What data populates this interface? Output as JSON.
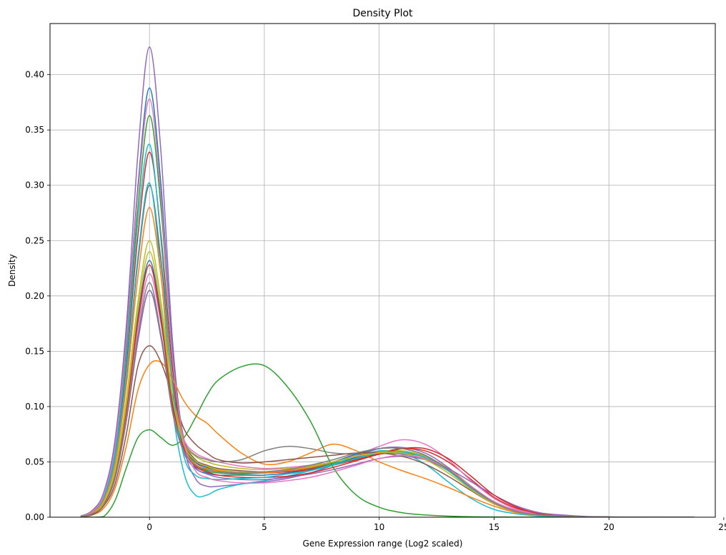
{
  "chart_data": {
    "type": "line",
    "title": "Density Plot",
    "xlabel": "Gene Expression range (Log2 scaled)",
    "ylabel": "Density",
    "xlim": [
      -4.33,
      24.63
    ],
    "ylim": [
      0,
      0.4462
    ],
    "xticks": [
      0,
      5,
      10,
      15,
      20,
      25
    ],
    "xtick_labels": [
      "0",
      "5",
      "10",
      "15",
      "20",
      "25"
    ],
    "yticks": [
      0,
      0.05,
      0.1,
      0.15,
      0.2,
      0.25,
      0.3,
      0.35,
      0.4
    ],
    "ytick_labels": [
      "0.00",
      "0.05",
      "0.10",
      "0.15",
      "0.20",
      "0.25",
      "0.30",
      "0.35",
      "0.40"
    ],
    "grid": true,
    "legend": "none",
    "palette": [
      "#1f77b4",
      "#ff7f0e",
      "#2ca02c",
      "#d62728",
      "#9467bd",
      "#8c564b",
      "#e377c2",
      "#7f7f7f",
      "#bcbd22",
      "#17becf"
    ],
    "x": [
      -3,
      -2.5,
      -2,
      -1.5,
      -1,
      -0.5,
      0,
      0.5,
      1,
      1.5,
      2,
      2.5,
      3,
      4,
      5,
      6,
      7,
      8,
      9,
      10,
      11,
      12,
      13,
      14,
      15,
      16,
      17,
      18,
      19,
      20,
      21,
      22,
      23,
      23.7
    ],
    "series": [
      {
        "color": "#9467bd",
        "values": [
          0.001,
          0.006,
          0.022,
          0.07,
          0.175,
          0.33,
          0.425,
          0.33,
          0.16,
          0.065,
          0.035,
          0.028,
          0.028,
          0.03,
          0.032,
          0.035,
          0.04,
          0.047,
          0.055,
          0.062,
          0.063,
          0.058,
          0.045,
          0.028,
          0.014,
          0.006,
          0.003,
          0.001,
          0.0005,
          0.0002,
          0.0001,
          0.0001,
          0.0001,
          0
        ]
      },
      {
        "color": "#1f77b4",
        "values": [
          0.001,
          0.005,
          0.02,
          0.065,
          0.165,
          0.3,
          0.388,
          0.3,
          0.15,
          0.07,
          0.045,
          0.04,
          0.038,
          0.038,
          0.038,
          0.04,
          0.043,
          0.048,
          0.054,
          0.059,
          0.06,
          0.055,
          0.043,
          0.027,
          0.013,
          0.005,
          0.002,
          0.001,
          0.0004,
          0.0002,
          0.0001,
          0,
          0,
          0
        ]
      },
      {
        "color": "#2ca02c",
        "values": [
          0.001,
          0.005,
          0.019,
          0.061,
          0.155,
          0.28,
          0.363,
          0.28,
          0.145,
          0.07,
          0.048,
          0.042,
          0.04,
          0.039,
          0.04,
          0.042,
          0.045,
          0.049,
          0.053,
          0.057,
          0.058,
          0.054,
          0.043,
          0.027,
          0.013,
          0.005,
          0.002,
          0.001,
          0.0004,
          0.0002,
          0.0001,
          0,
          0,
          0
        ]
      },
      {
        "color": "#d62728",
        "values": [
          0.001,
          0.004,
          0.017,
          0.055,
          0.14,
          0.255,
          0.33,
          0.255,
          0.135,
          0.07,
          0.05,
          0.045,
          0.042,
          0.04,
          0.04,
          0.041,
          0.043,
          0.047,
          0.052,
          0.058,
          0.062,
          0.06,
          0.05,
          0.034,
          0.018,
          0.008,
          0.003,
          0.001,
          0.0005,
          0.0002,
          0.0001,
          0,
          0,
          0
        ]
      },
      {
        "color": "#8c564b",
        "values": [
          0.001,
          0.004,
          0.016,
          0.051,
          0.128,
          0.232,
          0.3,
          0.232,
          0.125,
          0.07,
          0.052,
          0.047,
          0.044,
          0.042,
          0.041,
          0.042,
          0.044,
          0.048,
          0.053,
          0.057,
          0.059,
          0.055,
          0.044,
          0.028,
          0.014,
          0.006,
          0.002,
          0.001,
          0.0004,
          0.0002,
          0.0001,
          0,
          0,
          0
        ]
      },
      {
        "color": "#17becf",
        "values": [
          0.001,
          0.004,
          0.016,
          0.052,
          0.13,
          0.236,
          0.302,
          0.22,
          0.1,
          0.04,
          0.02,
          0.02,
          0.025,
          0.03,
          0.033,
          0.037,
          0.042,
          0.048,
          0.055,
          0.06,
          0.058,
          0.048,
          0.032,
          0.017,
          0.007,
          0.003,
          0.001,
          0.0004,
          0.0002,
          0.0001,
          0,
          0,
          0,
          0
        ]
      },
      {
        "color": "#bcbd22",
        "values": [
          0.001,
          0.003,
          0.013,
          0.043,
          0.108,
          0.195,
          0.25,
          0.195,
          0.11,
          0.068,
          0.055,
          0.05,
          0.047,
          0.044,
          0.043,
          0.044,
          0.046,
          0.05,
          0.055,
          0.059,
          0.06,
          0.055,
          0.044,
          0.028,
          0.014,
          0.006,
          0.002,
          0.001,
          0.0004,
          0.0002,
          0.0001,
          0,
          0,
          0
        ]
      },
      {
        "color": "#e377c2",
        "values": [
          0.001,
          0.003,
          0.012,
          0.038,
          0.095,
          0.172,
          0.22,
          0.175,
          0.105,
          0.07,
          0.058,
          0.053,
          0.05,
          0.046,
          0.044,
          0.045,
          0.047,
          0.05,
          0.056,
          0.064,
          0.07,
          0.066,
          0.052,
          0.033,
          0.017,
          0.007,
          0.003,
          0.001,
          0.0004,
          0.0002,
          0.0001,
          0,
          0,
          0
        ]
      },
      {
        "color": "#7f7f7f",
        "values": [
          0.001,
          0.003,
          0.011,
          0.035,
          0.088,
          0.16,
          0.205,
          0.165,
          0.1,
          0.068,
          0.056,
          0.052,
          0.05,
          0.052,
          0.06,
          0.064,
          0.062,
          0.058,
          0.057,
          0.058,
          0.057,
          0.052,
          0.042,
          0.027,
          0.014,
          0.006,
          0.002,
          0.001,
          0.0004,
          0.0002,
          0.0001,
          0,
          0,
          0
        ]
      },
      {
        "color": "#ff7f0e",
        "values": [
          0.0005,
          0.002,
          0.008,
          0.026,
          0.065,
          0.115,
          0.138,
          0.14,
          0.125,
          0.105,
          0.092,
          0.085,
          0.075,
          0.058,
          0.048,
          0.05,
          0.058,
          0.066,
          0.06,
          0.05,
          0.042,
          0.035,
          0.027,
          0.018,
          0.01,
          0.004,
          0.002,
          0.001,
          0.0004,
          0.0002,
          0.0001,
          0,
          0,
          0
        ]
      },
      {
        "color": "#2ca02c",
        "values": [
          0,
          0,
          0.0005,
          0.015,
          0.045,
          0.072,
          0.079,
          0.072,
          0.065,
          0.072,
          0.09,
          0.11,
          0.124,
          0.136,
          0.137,
          0.118,
          0.087,
          0.045,
          0.02,
          0.009,
          0.004,
          0.002,
          0.001,
          0.0004,
          0.0002,
          0.0001,
          0,
          0,
          0,
          0,
          0,
          0,
          0,
          0
        ]
      },
      {
        "color": "#1f77b4",
        "values": [
          0.001,
          0.003,
          0.012,
          0.04,
          0.1,
          0.182,
          0.232,
          0.182,
          0.105,
          0.065,
          0.05,
          0.045,
          0.042,
          0.04,
          0.04,
          0.042,
          0.045,
          0.05,
          0.057,
          0.062,
          0.062,
          0.056,
          0.043,
          0.027,
          0.013,
          0.005,
          0.002,
          0.001,
          0.0004,
          0.0002,
          0.0001,
          0,
          0,
          0
        ]
      },
      {
        "color": "#ff7f0e",
        "values": [
          0.001,
          0.004,
          0.015,
          0.048,
          0.12,
          0.218,
          0.28,
          0.218,
          0.118,
          0.065,
          0.048,
          0.044,
          0.042,
          0.04,
          0.04,
          0.042,
          0.045,
          0.05,
          0.055,
          0.059,
          0.059,
          0.054,
          0.042,
          0.026,
          0.013,
          0.005,
          0.002,
          0.001,
          0.0004,
          0.0002,
          0.0001,
          0,
          0,
          0
        ]
      },
      {
        "color": "#9467bd",
        "values": [
          0.001,
          0.003,
          0.011,
          0.035,
          0.088,
          0.16,
          0.205,
          0.162,
          0.095,
          0.058,
          0.044,
          0.039,
          0.036,
          0.034,
          0.034,
          0.036,
          0.039,
          0.043,
          0.048,
          0.053,
          0.055,
          0.052,
          0.044,
          0.032,
          0.02,
          0.01,
          0.004,
          0.002,
          0.0007,
          0.0003,
          0.0001,
          0,
          0,
          0
        ]
      },
      {
        "color": "#d62728",
        "values": [
          0.001,
          0.003,
          0.012,
          0.039,
          0.098,
          0.178,
          0.228,
          0.178,
          0.102,
          0.062,
          0.046,
          0.041,
          0.038,
          0.036,
          0.036,
          0.037,
          0.04,
          0.045,
          0.051,
          0.057,
          0.062,
          0.062,
          0.053,
          0.037,
          0.02,
          0.009,
          0.003,
          0.001,
          0.0005,
          0.0002,
          0.0001,
          0,
          0,
          0
        ]
      },
      {
        "color": "#8c564b",
        "values": [
          0.0005,
          0.002,
          0.01,
          0.03,
          0.076,
          0.137,
          0.155,
          0.14,
          0.11,
          0.08,
          0.066,
          0.058,
          0.052,
          0.049,
          0.05,
          0.052,
          0.054,
          0.056,
          0.058,
          0.058,
          0.055,
          0.048,
          0.037,
          0.024,
          0.012,
          0.005,
          0.002,
          0.001,
          0.0004,
          0.0002,
          0.0001,
          0,
          0,
          0
        ]
      },
      {
        "color": "#17becf",
        "values": [
          0.001,
          0.005,
          0.018,
          0.058,
          0.147,
          0.268,
          0.337,
          0.25,
          0.12,
          0.055,
          0.038,
          0.035,
          0.034,
          0.035,
          0.036,
          0.039,
          0.042,
          0.047,
          0.053,
          0.058,
          0.059,
          0.054,
          0.042,
          0.026,
          0.013,
          0.005,
          0.002,
          0.001,
          0.0004,
          0.0002,
          0.0001,
          0,
          0,
          0
        ]
      },
      {
        "color": "#bcbd22",
        "values": [
          0.001,
          0.003,
          0.013,
          0.041,
          0.103,
          0.188,
          0.24,
          0.188,
          0.108,
          0.066,
          0.051,
          0.046,
          0.043,
          0.041,
          0.041,
          0.043,
          0.046,
          0.05,
          0.055,
          0.058,
          0.058,
          0.052,
          0.04,
          0.025,
          0.012,
          0.005,
          0.002,
          0.001,
          0.0004,
          0.0002,
          0.0001,
          0,
          0,
          0
        ]
      },
      {
        "color": "#e377c2",
        "values": [
          0.001,
          0.005,
          0.02,
          0.064,
          0.162,
          0.294,
          0.378,
          0.29,
          0.145,
          0.068,
          0.042,
          0.036,
          0.033,
          0.031,
          0.031,
          0.033,
          0.036,
          0.041,
          0.047,
          0.053,
          0.056,
          0.053,
          0.043,
          0.028,
          0.014,
          0.006,
          0.002,
          0.001,
          0.0004,
          0.0002,
          0.0001,
          0,
          0,
          0
        ]
      },
      {
        "color": "#7f7f7f",
        "values": [
          0.001,
          0.003,
          0.011,
          0.036,
          0.09,
          0.165,
          0.212,
          0.165,
          0.096,
          0.06,
          0.047,
          0.043,
          0.041,
          0.04,
          0.041,
          0.043,
          0.047,
          0.052,
          0.058,
          0.062,
          0.062,
          0.056,
          0.043,
          0.027,
          0.013,
          0.005,
          0.002,
          0.001,
          0.0004,
          0.0002,
          0.0001,
          0,
          0,
          0
        ]
      }
    ]
  }
}
